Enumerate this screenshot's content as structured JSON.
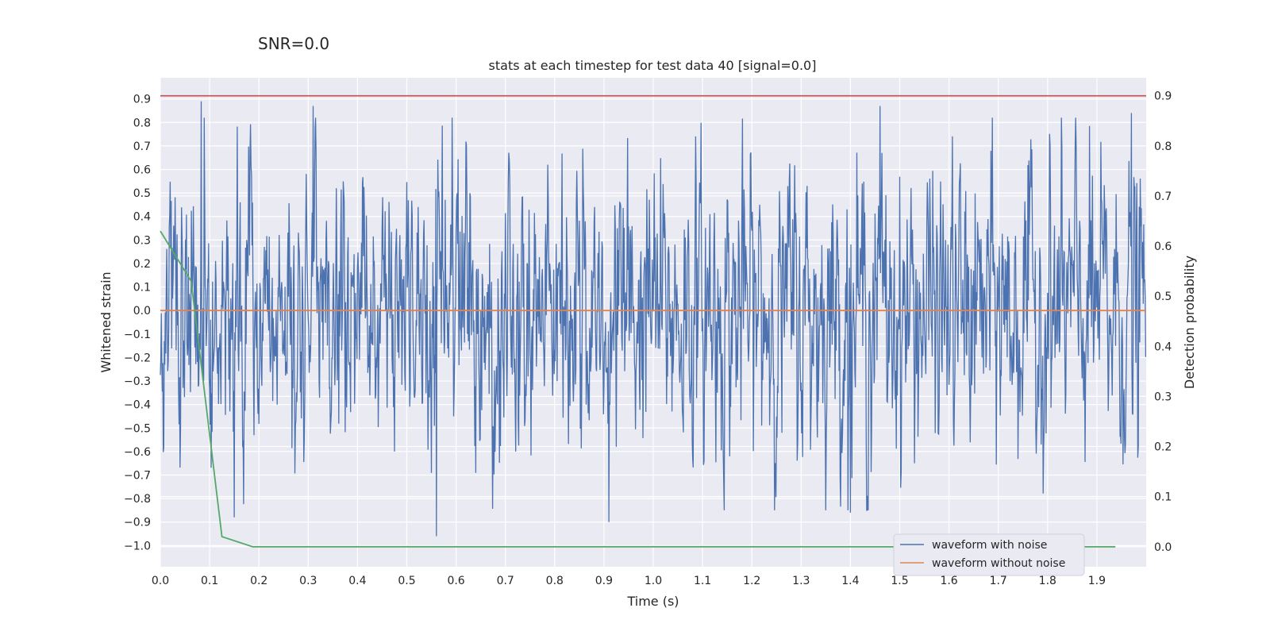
{
  "chart_data": {
    "type": "line",
    "suptitle": "SNR=0.0",
    "title": "stats at each timestep for test data 40 [signal=0.0]",
    "xlabel": "Time (s)",
    "ylabel_left": "Whitened strain",
    "ylabel_right": "Detection probability",
    "xlim": [
      0.0,
      2.0
    ],
    "ylim_left": [
      -1.09,
      0.99
    ],
    "ylim_right": [
      -0.04,
      0.936
    ],
    "x_ticks": [
      "0.0",
      "0.1",
      "0.2",
      "0.3",
      "0.4",
      "0.5",
      "0.6",
      "0.7",
      "0.8",
      "0.9",
      "1.0",
      "1.1",
      "1.2",
      "1.3",
      "1.4",
      "1.5",
      "1.6",
      "1.7",
      "1.8",
      "1.9"
    ],
    "y_ticks_left": [
      "0.9",
      "0.8",
      "0.7",
      "0.6",
      "0.5",
      "0.4",
      "0.3",
      "0.2",
      "0.1",
      "0.0",
      "-0.1",
      "-0.2",
      "-0.3",
      "-0.4",
      "-0.5",
      "-0.6",
      "-0.7",
      "-0.8",
      "-0.9",
      "-1.0"
    ],
    "y_ticks_right": [
      "0.9",
      "0.8",
      "0.7",
      "0.6",
      "0.5",
      "0.4",
      "0.3",
      "0.2",
      "0.1",
      "0.0"
    ],
    "threshold": {
      "value": 0.9,
      "color": "#c44e52"
    },
    "series": [
      {
        "name": "waveform with noise",
        "axis": "left",
        "color": "#4c72b0",
        "kind": "noise",
        "n": 2000,
        "std": 0.3,
        "peaks": [
          [
            0.083,
            0.89
          ],
          [
            0.31,
            0.87
          ],
          [
            1.46,
            0.87
          ],
          [
            1.97,
            0.84
          ],
          [
            0.56,
            -0.96
          ],
          [
            0.91,
            -0.9
          ],
          [
            0.15,
            -0.88
          ],
          [
            1.4,
            -0.86
          ]
        ]
      },
      {
        "name": "waveform without noise",
        "axis": "left",
        "color": "#dd8452",
        "x": [
          0.0,
          2.0
        ],
        "y": [
          0.0,
          0.0
        ]
      },
      {
        "name": "detection probability",
        "axis": "right",
        "color": "#55a868",
        "x": [
          0.0,
          0.0625,
          0.125,
          0.1875,
          0.25,
          0.5,
          1.0,
          1.5,
          1.9375
        ],
        "y": [
          0.63,
          0.53,
          0.02,
          0.0,
          0.0,
          0.0,
          0.0,
          0.0,
          0.0
        ]
      }
    ],
    "legend": {
      "position": "lower right",
      "entries": [
        "waveform with noise",
        "waveform without noise"
      ]
    }
  }
}
